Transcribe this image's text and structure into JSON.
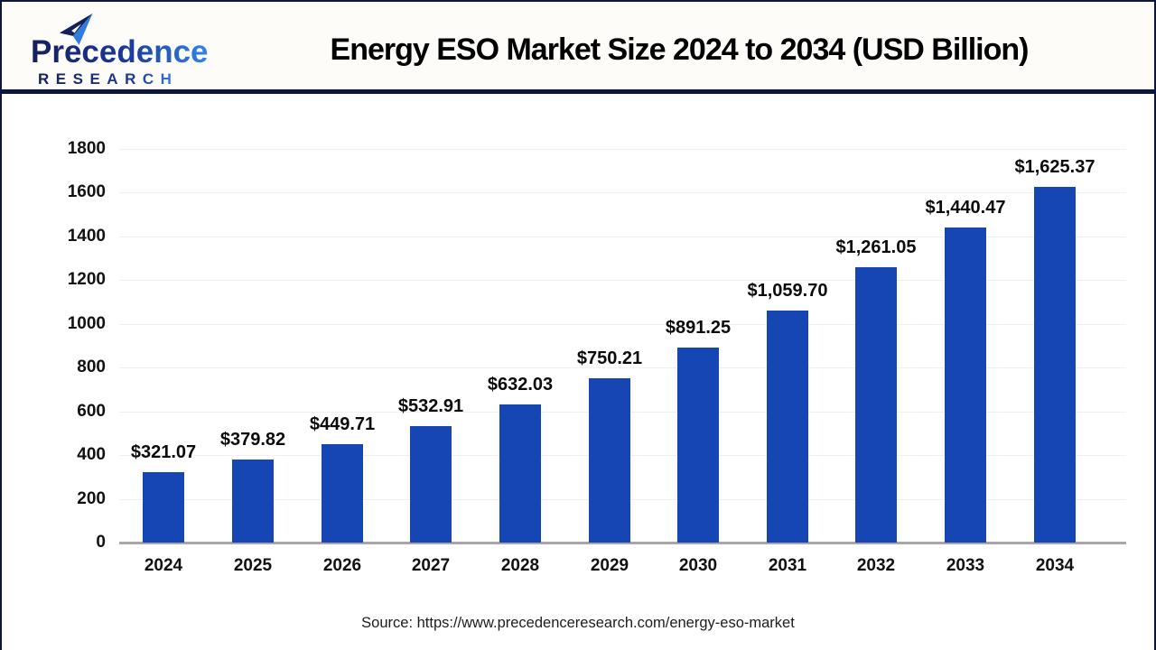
{
  "header": {
    "logo": {
      "line1": "Precedence",
      "line2": "RESEARCH"
    },
    "title": "Energy ESO Market Size 2024 to 2034 (USD Billion)"
  },
  "chart_data": {
    "type": "bar",
    "title": "Energy ESO Market Size 2024 to 2034 (USD Billion)",
    "categories": [
      "2024",
      "2025",
      "2026",
      "2027",
      "2028",
      "2029",
      "2030",
      "2031",
      "2032",
      "2033",
      "2034"
    ],
    "values": [
      321.07,
      379.82,
      449.71,
      532.91,
      632.03,
      750.21,
      891.25,
      1059.7,
      1261.05,
      1440.47,
      1625.37
    ],
    "value_labels": [
      "$321.07",
      "$379.82",
      "$449.71",
      "$532.91",
      "$632.03",
      "$750.21",
      "$891.25",
      "$1,059.70",
      "$1,261.05",
      "$1,440.47",
      "$1,625.37"
    ],
    "xlabel": "",
    "ylabel": "",
    "ylim": [
      0,
      1800
    ],
    "yticks": [
      0,
      200,
      400,
      600,
      800,
      1000,
      1200,
      1400,
      1600,
      1800
    ],
    "grid": true,
    "legend_position": "none",
    "bar_color": "#1646b4",
    "grid_color": "#f0f0ee",
    "axis_line_color": "#a8a8a8",
    "accent_navy": "#10153d"
  },
  "footer": {
    "source": "Source: https://www.precedenceresearch.com/energy-eso-market"
  }
}
